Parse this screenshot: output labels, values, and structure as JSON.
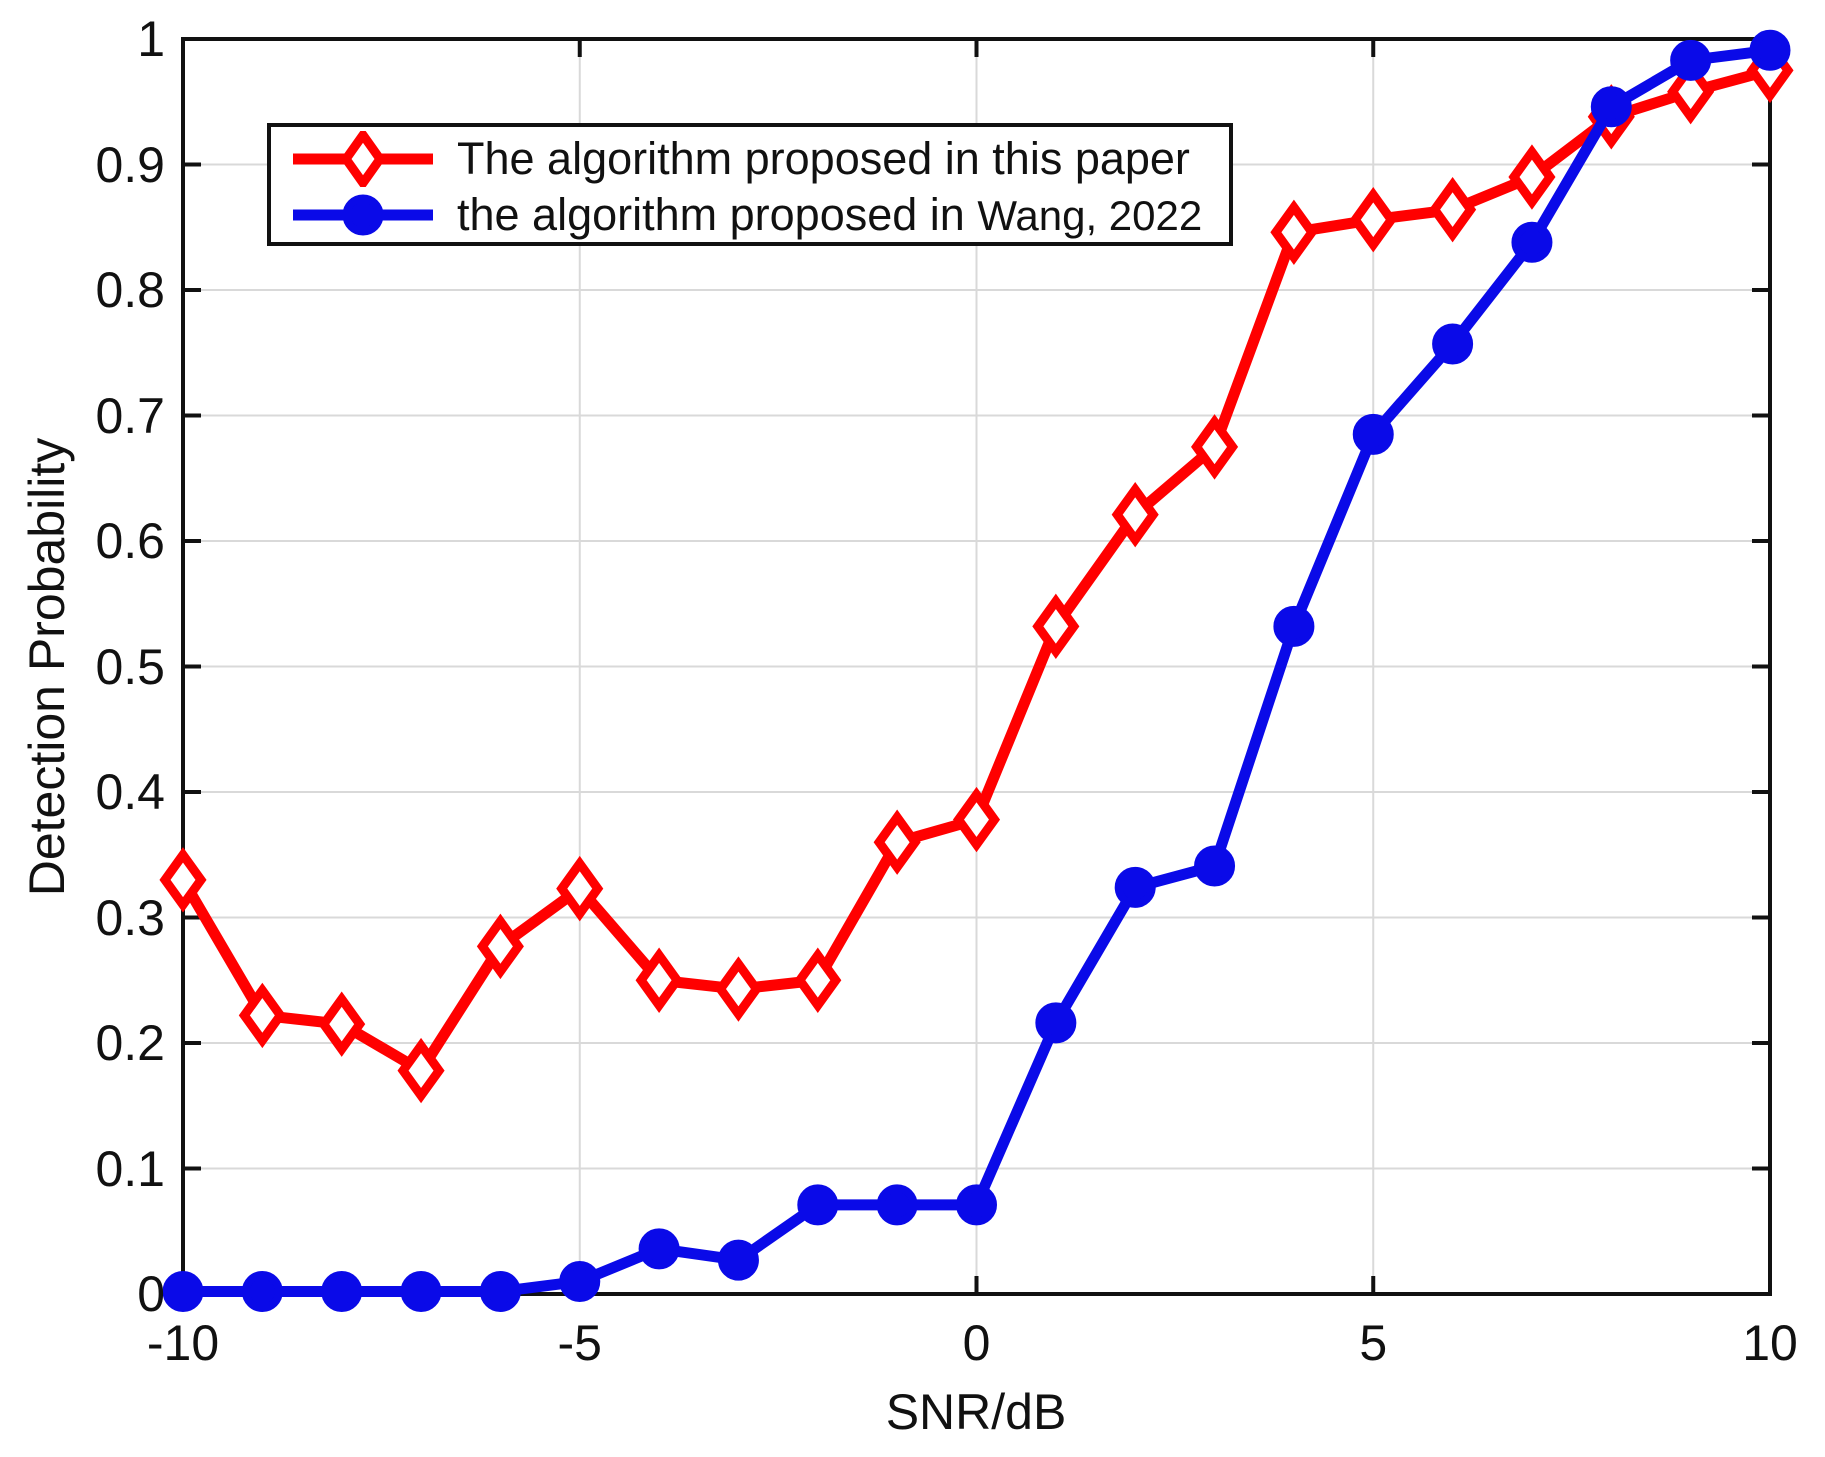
{
  "chart_data": {
    "type": "line",
    "title": "",
    "xlabel": "SNR/dB",
    "ylabel": "Detection Probability",
    "xlim": [
      -10,
      10
    ],
    "ylim": [
      0,
      1
    ],
    "x_ticks": [
      -10,
      -5,
      0,
      5,
      10
    ],
    "x_tick_labels": [
      "-10",
      "-5",
      "0",
      "5",
      "10"
    ],
    "y_ticks": [
      0,
      0.1,
      0.2,
      0.3,
      0.4,
      0.5,
      0.6,
      0.7,
      0.8,
      0.9,
      1
    ],
    "y_tick_labels": [
      "0",
      "0.1",
      "0.2",
      "0.3",
      "0.4",
      "0.5",
      "0.6",
      "0.7",
      "0.8",
      "0.9",
      "1"
    ],
    "grid": true,
    "legend_position": "top-left",
    "x": [
      -10,
      -9,
      -8,
      -7,
      -6,
      -5,
      -4,
      -3,
      -2,
      -1,
      0,
      1,
      2,
      3,
      4,
      5,
      6,
      7,
      8,
      9,
      10
    ],
    "series": [
      {
        "name": "The algorithm proposed in this paper",
        "color": "#ff0000",
        "marker": "diamond",
        "values": [
          0.33,
          0.222,
          0.215,
          0.178,
          0.277,
          0.323,
          0.25,
          0.243,
          0.25,
          0.36,
          0.378,
          0.532,
          0.621,
          0.675,
          0.846,
          0.856,
          0.864,
          0.89,
          0.938,
          0.958,
          0.975
        ]
      },
      {
        "name": "the algorithm proposed in Wang, 2022",
        "color": "#0a0ae8",
        "marker": "circle",
        "values": [
          0.002,
          0.002,
          0.002,
          0.002,
          0.002,
          0.01,
          0.036,
          0.027,
          0.071,
          0.071,
          0.071,
          0.216,
          0.324,
          0.341,
          0.532,
          0.685,
          0.757,
          0.838,
          0.946,
          0.983,
          0.991
        ]
      }
    ]
  },
  "legend": {
    "item1_label": "The algorithm proposed in this paper",
    "item2_prefix": "the algorithm proposed in ",
    "item2_citation": "Wang, 2022"
  },
  "colors": {
    "red": "#ff0000",
    "blue": "#0a0ae8",
    "grid": "#d9d9d9",
    "axis": "#111111"
  }
}
